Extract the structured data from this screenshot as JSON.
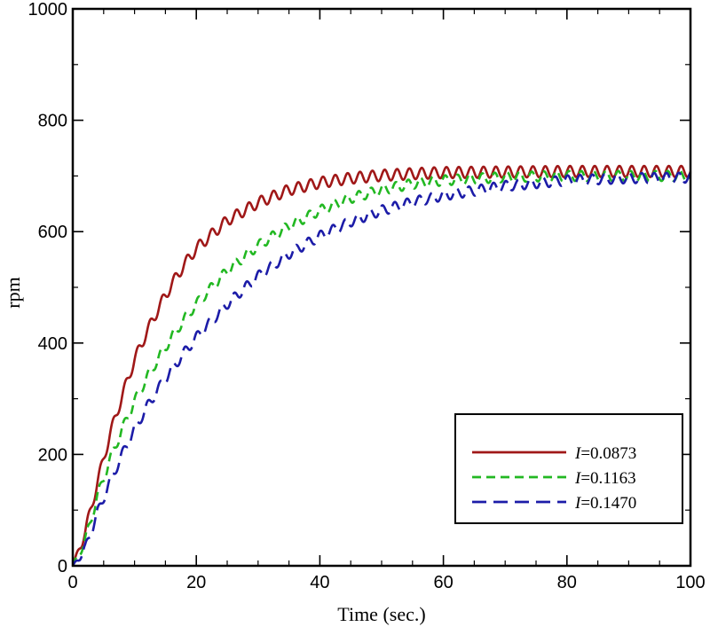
{
  "chart_data": {
    "type": "line",
    "title": "",
    "xlabel": "Time (sec.)",
    "ylabel": "rpm",
    "xlim": [
      0,
      100
    ],
    "ylim": [
      0,
      1000
    ],
    "xticks": [
      0,
      20,
      40,
      60,
      80,
      100
    ],
    "yticks": [
      0,
      200,
      400,
      600,
      800,
      1000
    ],
    "x_minor_step": 5,
    "y_minor_step": 100,
    "grid": false,
    "legend_position": "bottom-right",
    "oscillation_period": 2.0,
    "series": [
      {
        "name": "I=0.0873",
        "label_italic": "I",
        "label_rest": "=0.0873",
        "color": "#a01818",
        "dash": "solid",
        "steady_state": 708,
        "oscillation_amplitude": 10,
        "x": [
          0,
          2,
          4,
          6,
          8,
          10,
          12,
          14,
          16,
          18,
          20,
          25,
          30,
          35,
          40,
          45,
          50,
          55,
          60,
          70,
          80,
          90,
          100
        ],
        "y": [
          0,
          60,
          150,
          235,
          305,
          370,
          420,
          465,
          505,
          540,
          570,
          620,
          652,
          675,
          688,
          696,
          701,
          704,
          706,
          707,
          708,
          708,
          708
        ]
      },
      {
        "name": "I=0.1163",
        "label_italic": "I",
        "label_rest": "=0.1163",
        "color": "#22b822",
        "dash": "medium",
        "steady_state": 700,
        "oscillation_amplitude": 9,
        "x": [
          0,
          2,
          4,
          6,
          8,
          10,
          12,
          14,
          16,
          18,
          20,
          25,
          30,
          35,
          40,
          45,
          50,
          55,
          60,
          70,
          80,
          90,
          100
        ],
        "y": [
          0,
          45,
          125,
          190,
          245,
          295,
          338,
          375,
          410,
          442,
          470,
          530,
          575,
          610,
          638,
          660,
          675,
          686,
          692,
          698,
          700,
          700,
          700
        ]
      },
      {
        "name": "I=0.1470",
        "label_italic": "I",
        "label_rest": "=0.1470",
        "color": "#1c1ca8",
        "dash": "long",
        "steady_state": 697,
        "oscillation_amplitude": 9,
        "x": [
          0,
          2,
          4,
          6,
          8,
          10,
          12,
          14,
          16,
          18,
          20,
          25,
          30,
          35,
          40,
          45,
          50,
          55,
          60,
          70,
          80,
          90,
          100
        ],
        "y": [
          0,
          30,
          95,
          150,
          200,
          245,
          285,
          320,
          352,
          382,
          410,
          470,
          520,
          560,
          592,
          618,
          638,
          653,
          665,
          682,
          692,
          696,
          697
        ]
      }
    ]
  }
}
